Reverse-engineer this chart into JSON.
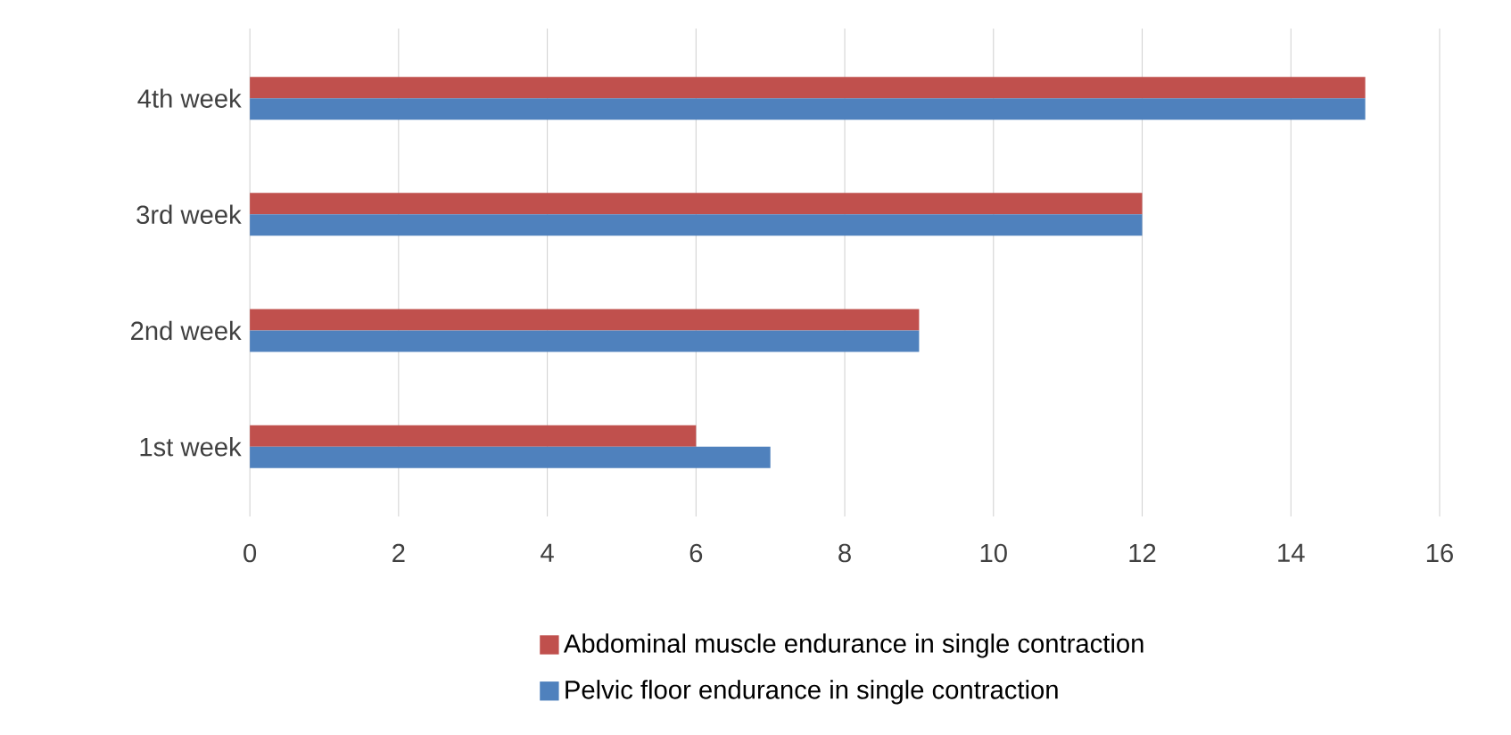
{
  "chart_data": {
    "type": "bar",
    "orientation": "horizontal",
    "categories": [
      "4th week",
      "3rd week",
      "2nd week",
      "1st week"
    ],
    "series": [
      {
        "name": "Abdominal muscle endurance in single contraction",
        "color": "#c0504d",
        "values": [
          15,
          12,
          9,
          6
        ]
      },
      {
        "name": "Pelvic floor endurance in single contraction",
        "color": "#4f81bd",
        "values": [
          15,
          12,
          9,
          7
        ]
      }
    ],
    "xlim": [
      0,
      16
    ],
    "xticks": [
      0,
      2,
      4,
      6,
      8,
      10,
      12,
      14,
      16
    ],
    "grid": "x",
    "legend": "bottom"
  }
}
